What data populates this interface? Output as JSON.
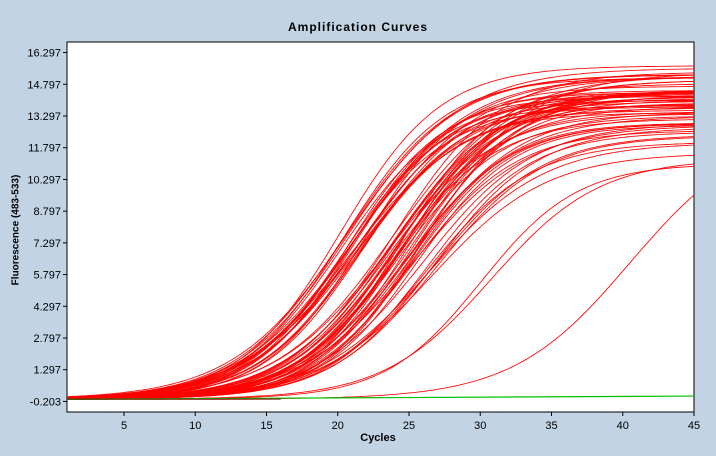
{
  "chart_data": {
    "type": "line",
    "title": "Amplification Curves",
    "xlabel": "Cycles",
    "ylabel": "Fluorescence (483-533)",
    "xlim": [
      1,
      45
    ],
    "ylim": [
      -0.703,
      16.797
    ],
    "x_ticks": [
      5,
      10,
      15,
      20,
      25,
      30,
      35,
      40,
      45
    ],
    "y_ticks": [
      "-0.203",
      "1.297",
      "2.797",
      "4.297",
      "5.797",
      "7.297",
      "8.797",
      "10.297",
      "11.797",
      "13.297",
      "14.797",
      "16.297"
    ],
    "grid": false,
    "legend": "none",
    "curve_color": "#ff0000",
    "negative_color": "#00c000",
    "baseline": -0.1,
    "groups": [
      {
        "count": 26,
        "ct_range": [
          20.0,
          22.0
        ],
        "plateau_range": [
          13.2,
          16.0
        ]
      },
      {
        "count": 34,
        "ct_range": [
          23.2,
          26.0
        ],
        "plateau_range": [
          12.6,
          15.4
        ]
      },
      {
        "count": 8,
        "ct_range": [
          26.0,
          27.0
        ],
        "plateau_range": [
          11.5,
          13.5
        ]
      },
      {
        "count": 2,
        "ct_range": [
          30.0,
          30.8
        ],
        "plateau_range": [
          10.8,
          11.6
        ]
      },
      {
        "count": 1,
        "ct_range": [
          40.5,
          40.5
        ],
        "plateau_range": [
          12.8,
          12.8
        ]
      }
    ],
    "negative_control": {
      "y_start": -0.1,
      "y_end": 0.05
    }
  }
}
